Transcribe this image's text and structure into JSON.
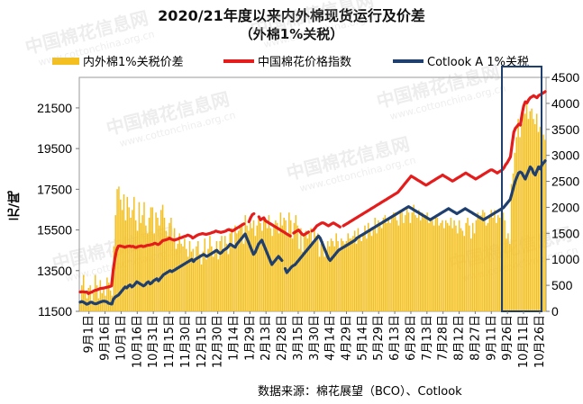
{
  "title_line1": "2020/21年度以来内外棉现货运行及价差",
  "title_line2": "（外棉1%关税）",
  "source_note": "数据来源：棉花展望（BCO）、Cotlook",
  "watermark": "中国棉花信息网",
  "watermark_url": "www.cottonchina.org.cn",
  "chart_data": {
    "type": "bar+line",
    "ylabel": "元/吨",
    "y_left_lim": [
      11500,
      23000
    ],
    "y_left_ticks": [
      11500,
      13500,
      15500,
      17500,
      19500,
      21500
    ],
    "y_right_lim": [
      0,
      4500
    ],
    "y_right_ticks": [
      0,
      500,
      1000,
      1500,
      2000,
      2500,
      3000,
      3500,
      4000,
      4500
    ],
    "x_tick_labels": [
      "9月1日",
      "9月16日",
      "10月1日",
      "10月16日",
      "10月31日",
      "11月15日",
      "11月30日",
      "12月15日",
      "12月30日",
      "1月14日",
      "1月29日",
      "2月13日",
      "2月28日",
      "3月15日",
      "3月30日",
      "4月14日",
      "4月29日",
      "5月14日",
      "5月29日",
      "6月13日",
      "6月28日",
      "7月13日",
      "7月28日",
      "8月12日",
      "8月27日",
      "9月11日",
      "9月26日",
      "10月11日",
      "10月26日"
    ],
    "legend_position": "top",
    "highlight_box": "last period (9月26日–10月26日), dark blue outline",
    "series": [
      {
        "name": "内外棉1%关税价差",
        "kind": "bar",
        "axis": "right",
        "color": "#F4C020",
        "values": [
          200,
          500,
          700,
          350,
          250,
          450,
          500,
          200,
          350,
          700,
          500,
          250,
          600,
          350,
          450,
          300,
          650,
          550,
          400,
          300,
          1250,
          1850,
          2350,
          2400,
          2150,
          1950,
          2250,
          1750,
          2200,
          2000,
          1800,
          1950,
          2200,
          1750,
          1550,
          2100,
          1700,
          1850,
          2100,
          1650,
          1500,
          1800,
          2000,
          2000,
          1500,
          1900,
          1800,
          1650,
          1950,
          2050,
          1800,
          1550,
          1450,
          1700,
          1800,
          1350,
          1600,
          1200,
          1300,
          1500,
          1300,
          1250,
          1400,
          1200,
          1050,
          1350,
          1150,
          1200,
          1000,
          1250,
          1350,
          1100,
          900,
          1150,
          1400,
          1000,
          1200,
          1450,
          1250,
          1050,
          1200,
          1350,
          1000,
          1350,
          1450,
          1200,
          1450,
          1300,
          1100,
          1500,
          1600,
          1250,
          1650,
          1500,
          1550,
          1650,
          1700,
          1300,
          1850,
          1650,
          1550,
          1700,
          1600,
          1750,
          1450,
          1650,
          1800,
          1700,
          1550,
          1800,
          1750,
          1600,
          1850,
          1600,
          1450,
          1650,
          1750,
          1700,
          1500,
          1900,
          1650,
          1800,
          1750,
          1500,
          1900,
          1750,
          1400,
          1700,
          1850,
          1650,
          1200,
          1600,
          1150,
          1500,
          1550,
          1400,
          1500,
          1600,
          1350,
          1600,
          1450,
          1500,
          1050,
          1300,
          1350,
          1050,
          1150,
          1350,
          1250,
          1400,
          1350,
          1250,
          1500,
          1350,
          1200,
          1400,
          1350,
          1300,
          1350,
          1500,
          1400,
          1400,
          1450,
          1550,
          1300,
          1600,
          1450,
          1350,
          1500,
          1650,
          1400,
          1700,
          1550,
          1450,
          1600,
          1800,
          1500,
          1750,
          1700,
          1600,
          1800,
          1850,
          1700,
          1800,
          1700,
          1850,
          1900,
          1900,
          1750,
          1650,
          1950,
          1900,
          1700,
          1850,
          2000,
          1900,
          1700,
          1900,
          2050,
          1850,
          1800,
          1950,
          1750,
          1900,
          1800,
          1850,
          1900,
          1700,
          1800,
          1750,
          1650,
          1850,
          1800,
          1650,
          1700,
          1750,
          1600,
          1750,
          1700,
          1650,
          1800,
          1600,
          1750,
          1650,
          1500,
          1750,
          1600,
          1550,
          1450,
          1700,
          1800,
          1650,
          1400,
          1700,
          1500,
          1750,
          1900,
          1800,
          1850,
          1950,
          1900,
          1650,
          1700,
          1850,
          1950,
          1800,
          1950,
          1700,
          1850,
          1800,
          2000,
          1900,
          1750,
          1400,
          1500,
          1300,
          2450,
          2650,
          3050,
          3350,
          3700,
          3350,
          3600,
          3900,
          3800,
          4000,
          3700,
          3850,
          3900,
          3700,
          3600,
          3800,
          3450,
          3550,
          3700,
          3400,
          3300
        ]
      },
      {
        "name": "中国棉花价格指数",
        "kind": "line",
        "axis": "left",
        "color": "#E51C1C",
        "values": [
          12450,
          12460,
          12460,
          12440,
          12450,
          12370,
          12420,
          12440,
          12490,
          12530,
          12550,
          12580,
          12620,
          12630,
          12640,
          12660,
          12680,
          12700,
          12720,
          12750,
          13550,
          14100,
          14500,
          14700,
          14720,
          14700,
          14680,
          14650,
          14680,
          14700,
          14710,
          14680,
          14700,
          14650,
          14640,
          14680,
          14700,
          14720,
          14680,
          14700,
          14730,
          14750,
          14760,
          14780,
          14800,
          14850,
          14820,
          14780,
          14820,
          14900,
          14980,
          15000,
          15020,
          15050,
          15100,
          15050,
          15020,
          15000,
          15030,
          15050,
          15100,
          15120,
          15150,
          15180,
          15200,
          15250,
          15220,
          15180,
          15100,
          15150,
          15200,
          15250,
          15280,
          15300,
          15320,
          15300,
          15280,
          15300,
          15320,
          15350,
          15380,
          15400,
          15450,
          15420,
          15400,
          15380,
          15400,
          15420,
          15450,
          15500,
          15520,
          15480,
          15450,
          15500,
          15550,
          15600,
          15650,
          15700,
          15750,
          15800,
          null,
          null,
          15900,
          16100,
          16250,
          16300,
          null,
          null,
          16150,
          16000,
          16050,
          16100,
          15950,
          15900,
          15850,
          15800,
          15750,
          15700,
          15650,
          15600,
          15550,
          15500,
          15450,
          15400,
          15350,
          15300,
          15250,
          15200,
          null,
          15350,
          15400,
          15450,
          15500,
          15400,
          15300,
          15250,
          15300,
          15350,
          15400,
          null,
          15450,
          15500,
          15600,
          15700,
          15750,
          15800,
          15850,
          15850,
          15800,
          15750,
          15700,
          15750,
          15800,
          15850,
          15800,
          15750,
          15700,
          15650,
          null,
          15700,
          15750,
          15800,
          15850,
          15900,
          15950,
          16000,
          16050,
          16100,
          16150,
          16200,
          16250,
          16300,
          16350,
          16400,
          16450,
          16500,
          16550,
          16600,
          16650,
          16700,
          16750,
          16800,
          16850,
          16900,
          16950,
          17000,
          17050,
          17100,
          17150,
          17200,
          17250,
          17300,
          17350,
          17450,
          17550,
          17650,
          17750,
          17850,
          17950,
          18050,
          18150,
          18100,
          18050,
          18000,
          17950,
          17900,
          17850,
          17800,
          17750,
          17700,
          17750,
          17800,
          17850,
          17900,
          17950,
          18000,
          18050,
          18100,
          18150,
          18200,
          18150,
          18100,
          18050,
          18000,
          17950,
          17900,
          17950,
          18000,
          18050,
          18100,
          18150,
          18200,
          18250,
          18300,
          18250,
          18200,
          18150,
          18100,
          18050,
          18000,
          18050,
          18100,
          18150,
          18200,
          18250,
          18300,
          18350,
          18400,
          18450,
          18450,
          18400,
          18350,
          18300,
          18350,
          18400,
          18450,
          18550,
          18700,
          18800,
          18950,
          19100,
          19700,
          20300,
          20500,
          20600,
          20700,
          20650,
          21200,
          21600,
          21800,
          21750,
          21900,
          22000,
          22050,
          22100,
          22050,
          22000,
          22100,
          22150,
          22200,
          22250,
          22300
        ]
      },
      {
        "name": "Cotlook A 1%关税",
        "kind": "line",
        "axis": "left",
        "color": "#1F3F6F",
        "values": [
          11950,
          11980,
          11950,
          11900,
          11850,
          11880,
          11940,
          11950,
          11900,
          11870,
          11880,
          11920,
          11950,
          11980,
          12000,
          11990,
          11970,
          11900,
          11880,
          11860,
          12100,
          12200,
          12250,
          12300,
          12400,
          12500,
          12600,
          12700,
          12650,
          12750,
          12800,
          12700,
          12750,
          12850,
          12950,
          12900,
          12850,
          12800,
          12750,
          12800,
          12900,
          12950,
          12850,
          12900,
          13000,
          13050,
          13100,
          13000,
          13100,
          13200,
          13300,
          13350,
          13400,
          13450,
          13500,
          13450,
          13500,
          13550,
          13600,
          13650,
          13700,
          13750,
          13800,
          13850,
          13900,
          13950,
          14000,
          14050,
          13950,
          14050,
          14100,
          14150,
          14200,
          14250,
          14300,
          14250,
          14200,
          14250,
          14300,
          14350,
          14400,
          14450,
          14500,
          14400,
          14350,
          14400,
          14500,
          14550,
          14600,
          14700,
          14800,
          14750,
          14700,
          14650,
          14800,
          14900,
          15000,
          15100,
          15200,
          15300,
          15100,
          14900,
          14700,
          14500,
          14300,
          14400,
          14600,
          14800,
          14900,
          15000,
          14800,
          14600,
          14400,
          14200,
          14000,
          13800,
          13900,
          14000,
          14100,
          14200,
          14100,
          14000,
          null,
          13600,
          13400,
          13500,
          13600,
          13700,
          13750,
          13800,
          13900,
          14000,
          14100,
          14200,
          14300,
          14400,
          14500,
          14600,
          14700,
          14800,
          14900,
          15000,
          15100,
          15200,
          15100,
          14900,
          14700,
          14500,
          14300,
          14100,
          14000,
          14100,
          14200,
          14300,
          14400,
          14500,
          14550,
          14600,
          14650,
          14700,
          14750,
          14800,
          14850,
          14900,
          14950,
          15000,
          15100,
          15150,
          15200,
          15250,
          15300,
          15350,
          15400,
          15450,
          15500,
          15550,
          15600,
          15650,
          15700,
          15750,
          15800,
          15850,
          15900,
          15950,
          16000,
          16050,
          16100,
          16150,
          16200,
          16250,
          16300,
          16350,
          16400,
          16450,
          16500,
          16550,
          16600,
          16650,
          16600,
          16550,
          16500,
          16450,
          16400,
          16350,
          16300,
          16250,
          16200,
          16150,
          16100,
          16050,
          16000,
          16050,
          16100,
          16150,
          16200,
          16250,
          16300,
          16350,
          16400,
          16450,
          16500,
          16550,
          16500,
          16450,
          16400,
          16350,
          16300,
          16350,
          16400,
          16450,
          16500,
          16550,
          16500,
          16450,
          16400,
          16350,
          16300,
          16250,
          16200,
          16150,
          16100,
          16050,
          16000,
          16050,
          16100,
          16150,
          16200,
          16250,
          16300,
          16350,
          16400,
          16450,
          16500,
          16550,
          16600,
          16700,
          16800,
          16900,
          17000,
          17300,
          17600,
          17900,
          18100,
          18300,
          18350,
          18300,
          18150,
          18000,
          18200,
          18400,
          18600,
          18500,
          18300,
          18200,
          18400,
          18600,
          18500,
          18700,
          18800,
          18900
        ]
      }
    ]
  }
}
